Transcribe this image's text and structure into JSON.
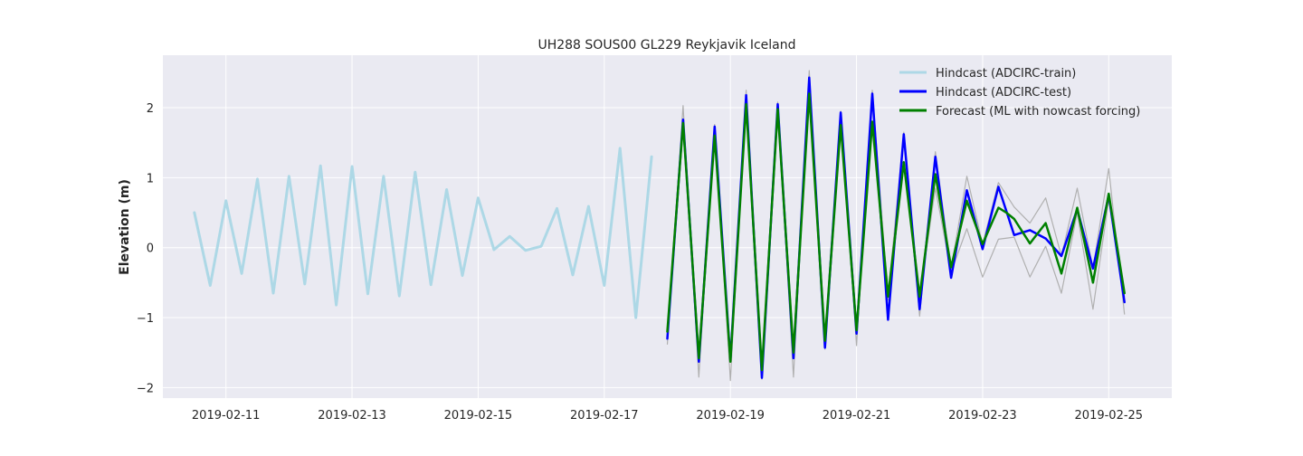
{
  "chart_data": {
    "type": "line",
    "title": "UH288 SOUS00 GL229 Reykjavik Iceland",
    "xlabel": "",
    "ylabel": "Elevation (m)",
    "xlim": [
      "2019-02-10T00:00",
      "2019-02-26T00:00"
    ],
    "ylim": [
      -2.15,
      2.75
    ],
    "grid": true,
    "legend_position": "top-right",
    "x_ticks": [
      "2019-02-11",
      "2019-02-13",
      "2019-02-15",
      "2019-02-17",
      "2019-02-19",
      "2019-02-21",
      "2019-02-23",
      "2019-02-25"
    ],
    "y_ticks": [
      {
        "value": -2,
        "label": "−2"
      },
      {
        "value": -1,
        "label": "−1"
      },
      {
        "value": 0,
        "label": "0"
      },
      {
        "value": 1,
        "label": "1"
      },
      {
        "value": 2,
        "label": "2"
      }
    ],
    "legend": [
      {
        "label": "Hindcast (ADCIRC-train)",
        "color": "#add8e6"
      },
      {
        "label": "Hindcast (ADCIRC-test)",
        "color": "#0000ff"
      },
      {
        "label": "Forecast (ML with nowcast forcing)",
        "color": "#008000"
      }
    ],
    "series": [
      {
        "name": "Hindcast (ADCIRC-train)",
        "color": "#add8e6",
        "x": [
          "2019-02-10T12:00",
          "2019-02-10T18:00",
          "2019-02-11T00:00",
          "2019-02-11T06:00",
          "2019-02-11T12:00",
          "2019-02-11T18:00",
          "2019-02-12T00:00",
          "2019-02-12T06:00",
          "2019-02-12T12:00",
          "2019-02-12T18:00",
          "2019-02-13T00:00",
          "2019-02-13T06:00",
          "2019-02-13T12:00",
          "2019-02-13T18:00",
          "2019-02-14T00:00",
          "2019-02-14T06:00",
          "2019-02-14T12:00",
          "2019-02-14T18:00",
          "2019-02-15T00:00",
          "2019-02-15T06:00",
          "2019-02-15T12:00",
          "2019-02-15T18:00",
          "2019-02-16T00:00",
          "2019-02-16T06:00",
          "2019-02-16T12:00",
          "2019-02-16T18:00",
          "2019-02-17T00:00",
          "2019-02-17T06:00",
          "2019-02-17T12:00",
          "2019-02-17T18:00"
        ],
        "y": [
          0.5,
          -0.54,
          0.67,
          -0.37,
          0.98,
          -0.65,
          1.02,
          -0.52,
          1.17,
          -0.82,
          1.16,
          -0.66,
          1.02,
          -0.69,
          1.08,
          -0.53,
          0.83,
          -0.4,
          0.71,
          -0.03,
          0.16,
          -0.04,
          0.02,
          0.56,
          -0.39,
          0.59,
          -0.54,
          1.42,
          -1.0,
          1.3
        ]
      },
      {
        "name": "Hindcast (ADCIRC-test)",
        "color": "#0000ff",
        "x": [
          "2019-02-18T00:00",
          "2019-02-18T06:00",
          "2019-02-18T12:00",
          "2019-02-18T18:00",
          "2019-02-19T00:00",
          "2019-02-19T06:00",
          "2019-02-19T12:00",
          "2019-02-19T18:00",
          "2019-02-20T00:00",
          "2019-02-20T06:00",
          "2019-02-20T12:00",
          "2019-02-20T18:00",
          "2019-02-21T00:00",
          "2019-02-21T06:00",
          "2019-02-21T12:00",
          "2019-02-21T18:00",
          "2019-02-22T00:00",
          "2019-02-22T06:00",
          "2019-02-22T12:00",
          "2019-02-22T18:00",
          "2019-02-23T00:00",
          "2019-02-23T06:00",
          "2019-02-23T12:00",
          "2019-02-23T18:00",
          "2019-02-24T00:00",
          "2019-02-24T06:00",
          "2019-02-24T12:00",
          "2019-02-24T18:00",
          "2019-02-25T00:00",
          "2019-02-25T06:00"
        ],
        "y": [
          -1.3,
          1.83,
          -1.63,
          1.73,
          -1.6,
          2.18,
          -1.86,
          2.05,
          -1.58,
          2.43,
          -1.43,
          1.93,
          -1.23,
          2.2,
          -1.03,
          1.62,
          -0.88,
          1.3,
          -0.43,
          0.82,
          -0.02,
          0.87,
          0.18,
          0.25,
          0.13,
          -0.12,
          0.55,
          -0.3,
          0.75,
          -0.78
        ]
      },
      {
        "name": "Forecast (ML with nowcast forcing)",
        "color": "#008000",
        "x": [
          "2019-02-18T00:00",
          "2019-02-18T06:00",
          "2019-02-18T12:00",
          "2019-02-18T18:00",
          "2019-02-19T00:00",
          "2019-02-19T06:00",
          "2019-02-19T12:00",
          "2019-02-19T18:00",
          "2019-02-20T00:00",
          "2019-02-20T06:00",
          "2019-02-20T12:00",
          "2019-02-20T18:00",
          "2019-02-21T00:00",
          "2019-02-21T06:00",
          "2019-02-21T12:00",
          "2019-02-21T18:00",
          "2019-02-22T00:00",
          "2019-02-22T06:00",
          "2019-02-22T12:00",
          "2019-02-22T18:00",
          "2019-02-23T00:00",
          "2019-02-23T06:00",
          "2019-02-23T09:00",
          "2019-02-23T12:00",
          "2019-02-23T18:00",
          "2019-02-24T00:00",
          "2019-02-24T06:00",
          "2019-02-24T12:00",
          "2019-02-24T18:00",
          "2019-02-25T00:00",
          "2019-02-25T06:00"
        ],
        "y": [
          -1.2,
          1.78,
          -1.58,
          1.6,
          -1.63,
          2.05,
          -1.75,
          1.98,
          -1.5,
          2.2,
          -1.33,
          1.75,
          -1.18,
          1.8,
          -0.7,
          1.22,
          -0.7,
          1.05,
          -0.28,
          0.67,
          0.05,
          0.57,
          0.5,
          0.41,
          0.06,
          0.35,
          -0.37,
          0.57,
          -0.5,
          0.77,
          -0.65
        ]
      },
      {
        "name": "",
        "color": "#b0b0b0",
        "x": [
          "2019-02-18T00:00",
          "2019-02-18T06:00",
          "2019-02-18T12:00",
          "2019-02-18T18:00",
          "2019-02-19T00:00",
          "2019-02-19T06:00",
          "2019-02-19T12:00",
          "2019-02-19T18:00",
          "2019-02-20T00:00",
          "2019-02-20T06:00",
          "2019-02-20T12:00",
          "2019-02-20T18:00",
          "2019-02-21T00:00",
          "2019-02-21T06:00",
          "2019-02-21T12:00",
          "2019-02-21T18:00",
          "2019-02-22T00:00",
          "2019-02-22T06:00",
          "2019-02-22T12:00",
          "2019-02-22T18:00",
          "2019-02-23T00:00",
          "2019-02-23T06:00",
          "2019-02-23T12:00",
          "2019-02-23T18:00",
          "2019-02-24T00:00",
          "2019-02-24T06:00",
          "2019-02-24T12:00",
          "2019-02-24T18:00",
          "2019-02-25T00:00",
          "2019-02-25T06:00"
        ],
        "y": [
          -1.38,
          2.03,
          -1.85,
          1.76,
          -1.9,
          2.25,
          -1.88,
          2.08,
          -1.85,
          2.53,
          -1.45,
          1.95,
          -1.4,
          2.25,
          -0.7,
          1.65,
          -0.98,
          1.37,
          -0.3,
          1.02,
          0.05,
          0.93,
          0.58,
          0.35,
          0.71,
          -0.12,
          0.85,
          -0.3,
          1.13,
          -0.95
        ]
      },
      {
        "name": "",
        "color": "#b0b0b0",
        "x": [
          "2019-02-18T00:00",
          "2019-02-18T06:00",
          "2019-02-18T12:00",
          "2019-02-18T18:00",
          "2019-02-19T00:00",
          "2019-02-19T06:00",
          "2019-02-19T12:00",
          "2019-02-19T18:00",
          "2019-02-20T00:00",
          "2019-02-20T06:00",
          "2019-02-20T12:00",
          "2019-02-20T18:00",
          "2019-02-21T00:00",
          "2019-02-21T06:00",
          "2019-02-21T12:00",
          "2019-02-21T18:00",
          "2019-02-22T00:00",
          "2019-02-22T06:00",
          "2019-02-22T12:00",
          "2019-02-22T18:00",
          "2019-02-23T00:00",
          "2019-02-23T06:00",
          "2019-02-23T12:00",
          "2019-02-23T18:00",
          "2019-02-24T00:00",
          "2019-02-24T06:00",
          "2019-02-24T12:00",
          "2019-02-24T18:00",
          "2019-02-25T00:00",
          "2019-02-25T06:00"
        ],
        "y": [
          -1.25,
          1.75,
          -1.55,
          1.58,
          -1.6,
          2.0,
          -1.7,
          1.92,
          -1.45,
          2.15,
          -1.3,
          1.7,
          -1.15,
          1.78,
          -0.75,
          1.2,
          -0.7,
          0.85,
          -0.35,
          0.27,
          -0.42,
          0.12,
          0.15,
          -0.42,
          0.02,
          -0.65,
          0.5,
          -0.88,
          0.68,
          -0.7
        ]
      }
    ]
  }
}
